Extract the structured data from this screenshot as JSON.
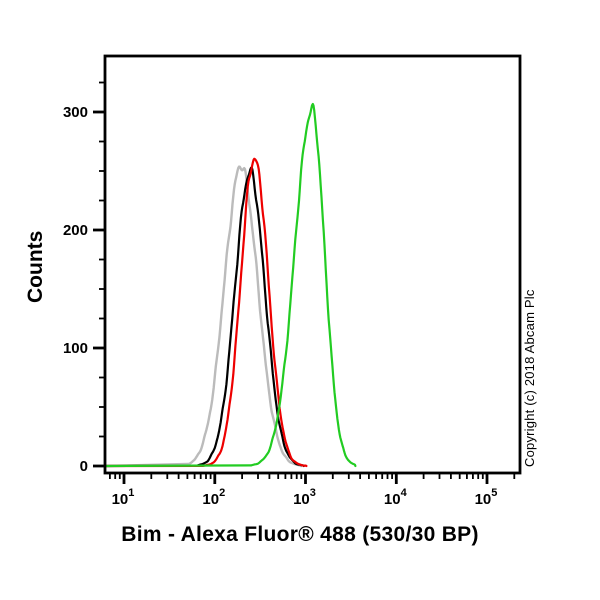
{
  "figure": {
    "copyright": "Copyright (c) 2018 Abcam Plc",
    "background_color": "#ffffff",
    "axis_color": "#000000"
  },
  "chart_data": {
    "type": "line",
    "subtype": "flow_cytometry_histogram",
    "title": "",
    "xlabel": "Bim - Alexa Fluor® 488 (530/30 BP)",
    "ylabel": "Counts",
    "grid": false,
    "legend": false,
    "x_scale": "log10",
    "x_axis": {
      "lim_log10": [
        0.79,
        5.36
      ],
      "major_tick_exponents": [
        1,
        2,
        3,
        4,
        5
      ],
      "tick_label_base": "10",
      "minor_tick_multipliers": [
        2,
        3,
        4,
        5,
        6,
        7,
        8,
        9
      ]
    },
    "y_axis": {
      "lim": [
        0,
        347
      ],
      "major_ticks": [
        0,
        100,
        200,
        300
      ],
      "minor_tick_step": 25
    },
    "series": [
      {
        "name": "gray-control",
        "color": "#bbbbbb",
        "peak_x": 195,
        "peak_log10": 2.29,
        "peak_counts": 254,
        "sigma_log10": 0.185,
        "base_range_log10": [
          1.7,
          2.95
        ],
        "stroke_width": 2.4
      },
      {
        "name": "black-control",
        "color": "#000000",
        "peak_x": 244,
        "peak_log10": 2.388,
        "peak_counts": 249,
        "sigma_log10": 0.165,
        "base_range_log10": [
          1.76,
          2.98
        ],
        "stroke_width": 2.2
      },
      {
        "name": "red-control",
        "color": "#ee0000",
        "peak_x": 274,
        "peak_log10": 2.438,
        "peak_counts": 261,
        "sigma_log10": 0.152,
        "base_range_log10": [
          1.82,
          3.01
        ],
        "stroke_width": 2.2
      },
      {
        "name": "green-sample",
        "color": "#22cc22",
        "peak_x": 1180,
        "peak_log10": 3.071,
        "peak_counts": 302,
        "sigma_log10": 0.165,
        "sigma_left_log10": 0.19,
        "sigma_right_log10": 0.14,
        "base_range_log10": [
          2.4,
          3.55
        ],
        "stroke_width": 2.2
      }
    ]
  }
}
